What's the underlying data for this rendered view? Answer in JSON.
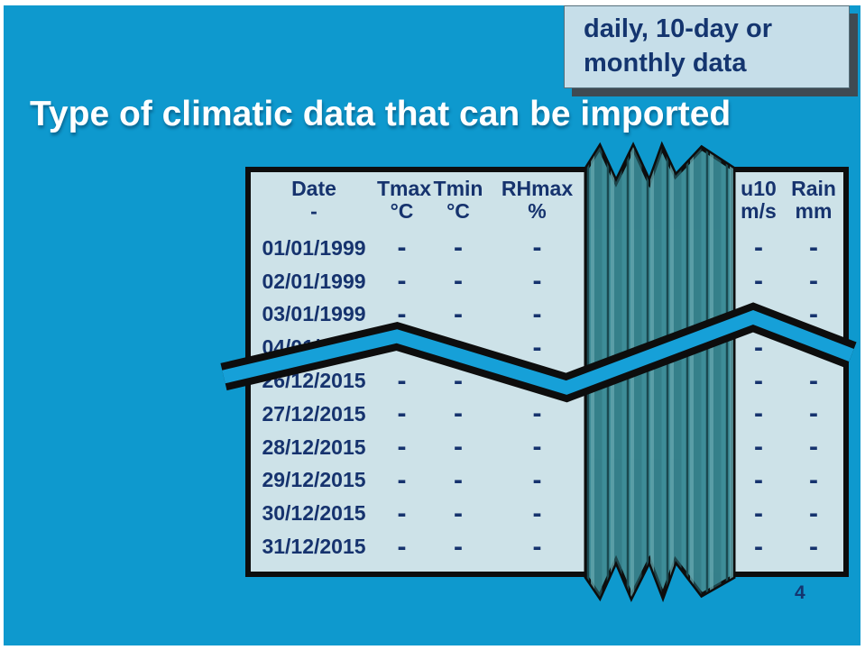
{
  "slide": {
    "title": "Type of climatic data that can be imported",
    "callout": {
      "line1": "daily, 10-day or",
      "line2": "monthly data"
    },
    "page_number": "4"
  },
  "table": {
    "left_columns": [
      {
        "name": "Date",
        "unit": "-"
      },
      {
        "name": "Tmax",
        "unit": "°C"
      },
      {
        "name": "Tmin",
        "unit": "°C"
      },
      {
        "name": "RHmax",
        "unit": "%"
      }
    ],
    "right_columns": [
      {
        "name": "u10",
        "unit": "m/s"
      },
      {
        "name": "Rain",
        "unit": "mm"
      }
    ],
    "rows": [
      "01/01/1999",
      "02/01/1999",
      "03/01/1999",
      "04/01/1999",
      "26/12/2015",
      "27/12/2015",
      "28/12/2015",
      "29/12/2015",
      "30/12/2015",
      "31/12/2015"
    ],
    "placeholder": "-"
  },
  "colors": {
    "background": "#0E99CE",
    "table_background": "#CDE2E8",
    "text_navy": "#16336E",
    "fold_teal": "#3E8D98",
    "fold_line_dark": "#1A4950",
    "tear_band_cyan": "#16A0D8",
    "callout_background": "#C6DEE9",
    "callout_shadow": "#3F4A52",
    "border_black": "#0D0D0D",
    "title_white": "#FFFFFF"
  }
}
